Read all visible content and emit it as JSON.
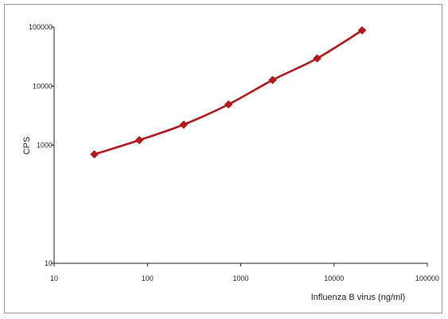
{
  "chart_data": {
    "type": "line",
    "title": "",
    "xlabel": "Influenza B virus (ng/ml)",
    "ylabel": "CPS",
    "xscale": "log",
    "yscale": "log",
    "xlim": [
      10,
      100000
    ],
    "ylim": [
      10,
      100000
    ],
    "x_tick_labels": [
      "10",
      "100",
      "1000",
      "10000",
      "100000"
    ],
    "y_tick_labels": [
      "10",
      "1000",
      "10000",
      "100000"
    ],
    "grid": false,
    "legend": "none",
    "series": [
      {
        "color": "#b5171b",
        "marker": "diamond",
        "points": [
          {
            "x": 27,
            "y": 700
          },
          {
            "x": 82,
            "y": 1220
          },
          {
            "x": 245,
            "y": 2230
          },
          {
            "x": 740,
            "y": 4900
          },
          {
            "x": 2200,
            "y": 12700
          },
          {
            "x": 6600,
            "y": 29500
          },
          {
            "x": 20000,
            "y": 88000
          }
        ]
      }
    ]
  }
}
